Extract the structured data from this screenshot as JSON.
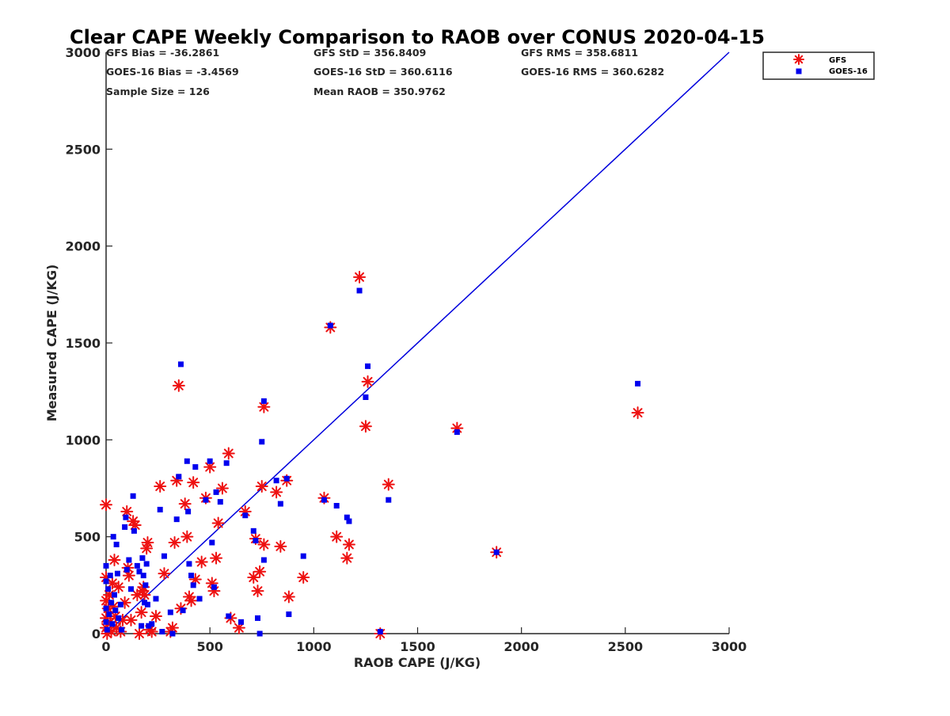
{
  "chart_data": {
    "type": "scatter",
    "title": "Clear CAPE Weekly Comparison to RAOB over CONUS 2020-04-15",
    "xlabel": "RAOB CAPE (J/KG)",
    "ylabel": "Measured CAPE (J/KG)",
    "xlim": [
      0,
      3000
    ],
    "ylim": [
      0,
      3000
    ],
    "xticks": [
      "0",
      "500",
      "1000",
      "1500",
      "2000",
      "2500",
      "3000"
    ],
    "yticks": [
      "0",
      "500",
      "1000",
      "1500",
      "2000",
      "2500",
      "3000"
    ],
    "grid": false,
    "legend_position": "top-right",
    "stats": [
      "GFS Bias = -36.2861",
      "GFS StD = 356.8409",
      "GFS RMS = 358.6811",
      "GOES-16 Bias = -3.4569",
      "GOES-16 StD = 360.6116",
      "GOES-16 RMS = 360.6282",
      "Sample Size = 126",
      "Mean RAOB = 350.9762"
    ],
    "reference_line": {
      "from": [
        0,
        0
      ],
      "to": [
        3000,
        3000
      ],
      "color": "#0000dd"
    },
    "series": [
      {
        "name": "GFS",
        "marker": "asterisk",
        "color": "#ee1111",
        "points": [
          [
            0,
            665
          ],
          [
            0,
            290
          ],
          [
            0,
            170
          ],
          [
            0,
            80
          ],
          [
            0,
            30
          ],
          [
            5,
            0
          ],
          [
            10,
            130
          ],
          [
            15,
            200
          ],
          [
            20,
            60
          ],
          [
            25,
            10
          ],
          [
            30,
            260
          ],
          [
            35,
            140
          ],
          [
            40,
            380
          ],
          [
            45,
            90
          ],
          [
            50,
            30
          ],
          [
            60,
            240
          ],
          [
            70,
            10
          ],
          [
            80,
            70
          ],
          [
            90,
            160
          ],
          [
            100,
            630
          ],
          [
            105,
            340
          ],
          [
            110,
            300
          ],
          [
            120,
            70
          ],
          [
            130,
            580
          ],
          [
            140,
            560
          ],
          [
            150,
            200
          ],
          [
            160,
            0
          ],
          [
            170,
            110
          ],
          [
            175,
            220
          ],
          [
            180,
            240
          ],
          [
            185,
            200
          ],
          [
            195,
            440
          ],
          [
            200,
            470
          ],
          [
            210,
            20
          ],
          [
            220,
            10
          ],
          [
            240,
            90
          ],
          [
            260,
            760
          ],
          [
            280,
            310
          ],
          [
            310,
            10
          ],
          [
            320,
            30
          ],
          [
            330,
            470
          ],
          [
            340,
            790
          ],
          [
            350,
            1280
          ],
          [
            360,
            130
          ],
          [
            380,
            670
          ],
          [
            390,
            500
          ],
          [
            400,
            190
          ],
          [
            410,
            170
          ],
          [
            420,
            780
          ],
          [
            430,
            280
          ],
          [
            460,
            370
          ],
          [
            480,
            700
          ],
          [
            500,
            860
          ],
          [
            510,
            260
          ],
          [
            520,
            220
          ],
          [
            530,
            390
          ],
          [
            540,
            570
          ],
          [
            560,
            750
          ],
          [
            590,
            930
          ],
          [
            600,
            80
          ],
          [
            640,
            30
          ],
          [
            670,
            630
          ],
          [
            710,
            290
          ],
          [
            720,
            490
          ],
          [
            730,
            220
          ],
          [
            740,
            320
          ],
          [
            750,
            760
          ],
          [
            760,
            460
          ],
          [
            760,
            1170
          ],
          [
            820,
            730
          ],
          [
            840,
            450
          ],
          [
            870,
            790
          ],
          [
            880,
            190
          ],
          [
            950,
            290
          ],
          [
            1050,
            700
          ],
          [
            1080,
            1580
          ],
          [
            1110,
            500
          ],
          [
            1160,
            390
          ],
          [
            1170,
            460
          ],
          [
            1220,
            1840
          ],
          [
            1250,
            1070
          ],
          [
            1260,
            1300
          ],
          [
            1320,
            0
          ],
          [
            1360,
            770
          ],
          [
            1690,
            1060
          ],
          [
            1880,
            420
          ],
          [
            2560,
            1140
          ]
        ]
      },
      {
        "name": "GOES-16",
        "marker": "square",
        "color": "#0000ee",
        "points": [
          [
            0,
            350
          ],
          [
            0,
            270
          ],
          [
            0,
            130
          ],
          [
            0,
            60
          ],
          [
            5,
            20
          ],
          [
            10,
            230
          ],
          [
            15,
            100
          ],
          [
            20,
            300
          ],
          [
            25,
            160
          ],
          [
            30,
            50
          ],
          [
            35,
            500
          ],
          [
            40,
            200
          ],
          [
            45,
            120
          ],
          [
            50,
            460
          ],
          [
            55,
            310
          ],
          [
            60,
            80
          ],
          [
            70,
            150
          ],
          [
            75,
            20
          ],
          [
            90,
            550
          ],
          [
            95,
            600
          ],
          [
            100,
            330
          ],
          [
            110,
            380
          ],
          [
            120,
            230
          ],
          [
            130,
            710
          ],
          [
            135,
            530
          ],
          [
            150,
            350
          ],
          [
            160,
            320
          ],
          [
            170,
            40
          ],
          [
            175,
            390
          ],
          [
            180,
            300
          ],
          [
            185,
            160
          ],
          [
            190,
            250
          ],
          [
            195,
            360
          ],
          [
            200,
            150
          ],
          [
            205,
            40
          ],
          [
            220,
            50
          ],
          [
            240,
            180
          ],
          [
            260,
            640
          ],
          [
            270,
            10
          ],
          [
            280,
            400
          ],
          [
            310,
            110
          ],
          [
            320,
            0
          ],
          [
            340,
            590
          ],
          [
            350,
            810
          ],
          [
            360,
            1390
          ],
          [
            370,
            120
          ],
          [
            390,
            890
          ],
          [
            395,
            630
          ],
          [
            400,
            360
          ],
          [
            410,
            300
          ],
          [
            420,
            250
          ],
          [
            430,
            860
          ],
          [
            450,
            180
          ],
          [
            480,
            690
          ],
          [
            500,
            890
          ],
          [
            510,
            470
          ],
          [
            520,
            240
          ],
          [
            530,
            730
          ],
          [
            550,
            680
          ],
          [
            580,
            880
          ],
          [
            590,
            90
          ],
          [
            650,
            60
          ],
          [
            670,
            610
          ],
          [
            710,
            530
          ],
          [
            720,
            480
          ],
          [
            730,
            80
          ],
          [
            740,
            0
          ],
          [
            750,
            990
          ],
          [
            760,
            380
          ],
          [
            760,
            1200
          ],
          [
            820,
            790
          ],
          [
            840,
            670
          ],
          [
            870,
            800
          ],
          [
            880,
            100
          ],
          [
            950,
            400
          ],
          [
            1050,
            690
          ],
          [
            1080,
            1590
          ],
          [
            1110,
            660
          ],
          [
            1160,
            600
          ],
          [
            1170,
            580
          ],
          [
            1220,
            1770
          ],
          [
            1250,
            1220
          ],
          [
            1260,
            1380
          ],
          [
            1320,
            10
          ],
          [
            1360,
            690
          ],
          [
            1690,
            1040
          ],
          [
            1880,
            420
          ],
          [
            2560,
            1290
          ]
        ]
      }
    ]
  }
}
